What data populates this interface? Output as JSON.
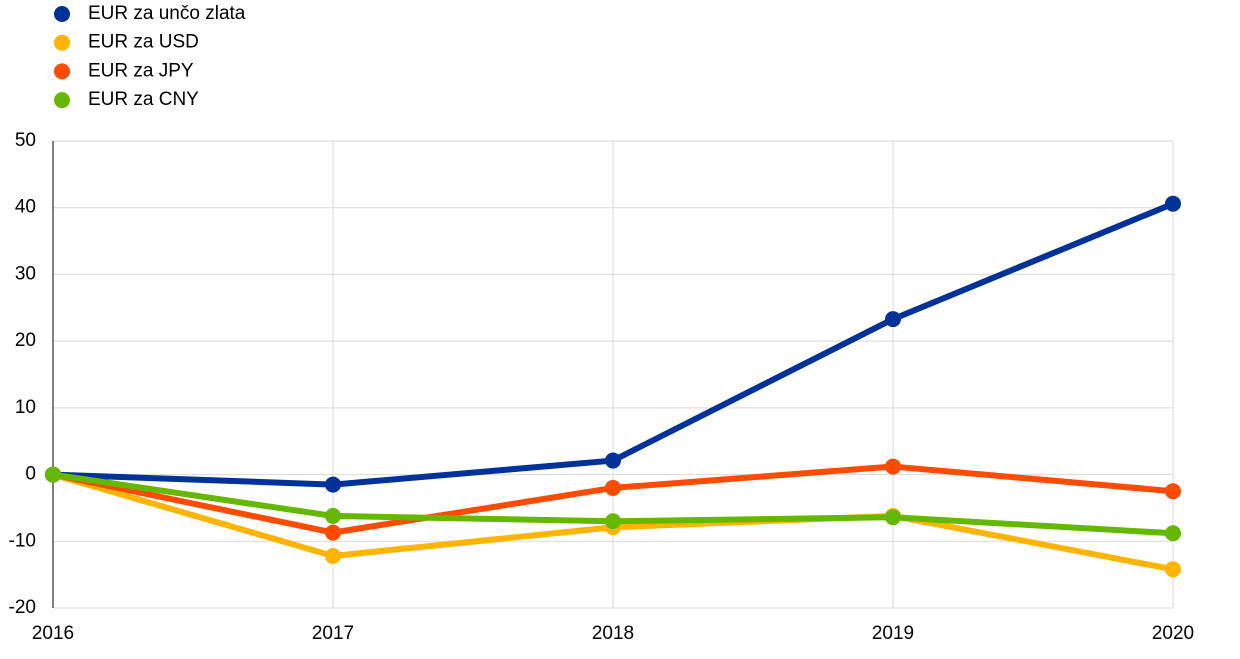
{
  "chart_data": {
    "type": "line",
    "x": [
      2016,
      2017,
      2018,
      2019,
      2020
    ],
    "xlim": [
      2016,
      2020
    ],
    "xticks": [
      2016,
      2017,
      2018,
      2019,
      2020
    ],
    "ylim": [
      -20,
      50
    ],
    "yticks": [
      -20,
      -10,
      0,
      10,
      20,
      30,
      40,
      50
    ],
    "grid": true,
    "legend": "top-left",
    "series": [
      {
        "name": "EUR za unčo zlata",
        "color": "#003299",
        "values": [
          0,
          -1.5,
          2.1,
          23.3,
          40.6
        ]
      },
      {
        "name": "EUR za USD",
        "color": "#ffb400",
        "values": [
          0,
          -12.2,
          -7.9,
          -6.2,
          -14.2
        ]
      },
      {
        "name": "EUR za JPY",
        "color": "#ff4b00",
        "values": [
          0,
          -8.7,
          -2.0,
          1.2,
          -2.5
        ]
      },
      {
        "name": "EUR za CNY",
        "color": "#65b800",
        "values": [
          0,
          -6.2,
          -7.0,
          -6.4,
          -8.8
        ]
      }
    ]
  }
}
